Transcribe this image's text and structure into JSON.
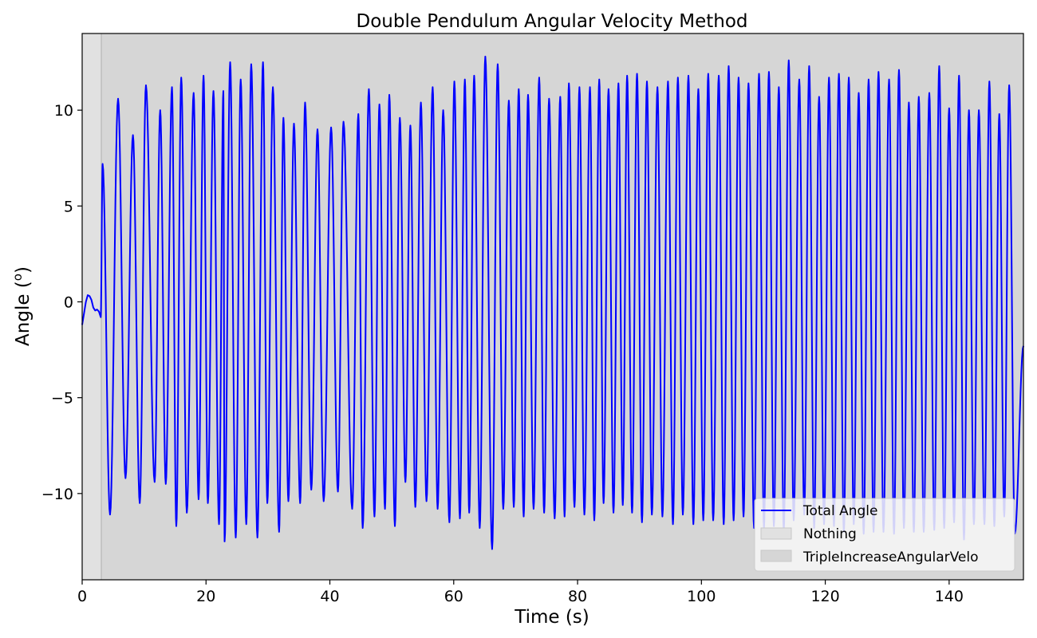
{
  "chart_data": {
    "type": "line",
    "title": "Double Pendulum Angular Velocity Method",
    "xlabel": "Time (s)",
    "ylabel_main": "Angle (",
    "ylabel_sup": "o",
    "ylabel_end": ")",
    "xlim": [
      0,
      152
    ],
    "ylim": [
      -14.5,
      14
    ],
    "xticks": [
      0,
      20,
      40,
      60,
      80,
      100,
      120,
      140
    ],
    "yticks": [
      -10,
      -5,
      0,
      5,
      10
    ],
    "ytick_labels": [
      "−10",
      "−5",
      "0",
      "5",
      "10"
    ],
    "grid": false,
    "legend_placement": "lower-right",
    "colors": {
      "line": "#0000ff",
      "span_nothing": "#e1e1e1",
      "span_triple": "#d6d6d6"
    },
    "spans": [
      {
        "name": "Nothing",
        "x0": 0,
        "x1": 3.1
      },
      {
        "name": "TripleIncreaseAngularVelo",
        "x0": 3.1,
        "x1": 152
      }
    ],
    "series": [
      {
        "name": "Total Angle",
        "initial": [
          [
            0,
            -1.2
          ],
          [
            0.3,
            -0.6
          ],
          [
            0.6,
            0.0
          ],
          [
            0.9,
            0.35
          ],
          [
            1.2,
            0.3
          ],
          [
            1.5,
            0.1
          ],
          [
            1.8,
            -0.3
          ],
          [
            2.1,
            -0.45
          ],
          [
            2.4,
            -0.4
          ],
          [
            2.7,
            -0.5
          ],
          [
            3.0,
            -0.8
          ]
        ],
        "peaks": [
          [
            3.3,
            7.2
          ],
          [
            5.8,
            10.6
          ],
          [
            8.2,
            8.7
          ],
          [
            10.3,
            11.3
          ],
          [
            12.6,
            10.0
          ],
          [
            14.5,
            11.2
          ],
          [
            16.0,
            11.7
          ],
          [
            18.0,
            10.9
          ],
          [
            19.6,
            11.8
          ],
          [
            21.2,
            11.0
          ],
          [
            22.8,
            11.0
          ],
          [
            23.9,
            12.5
          ],
          [
            25.6,
            11.6
          ],
          [
            27.3,
            12.4
          ],
          [
            29.2,
            12.5
          ],
          [
            30.8,
            11.2
          ],
          [
            32.5,
            9.6
          ],
          [
            34.2,
            9.3
          ],
          [
            36.0,
            10.4
          ],
          [
            38.0,
            9.0
          ],
          [
            40.2,
            9.1
          ],
          [
            42.2,
            9.4
          ],
          [
            44.6,
            9.8
          ],
          [
            46.3,
            11.1
          ],
          [
            48.0,
            10.3
          ],
          [
            49.6,
            10.8
          ],
          [
            51.3,
            9.6
          ],
          [
            53.0,
            9.2
          ],
          [
            54.7,
            10.4
          ],
          [
            56.6,
            11.2
          ],
          [
            58.3,
            10.0
          ],
          [
            60.1,
            11.5
          ],
          [
            61.8,
            11.6
          ],
          [
            63.3,
            11.8
          ],
          [
            65.1,
            12.8
          ],
          [
            67.1,
            12.4
          ],
          [
            68.9,
            10.5
          ],
          [
            70.5,
            11.1
          ],
          [
            72.0,
            10.8
          ],
          [
            73.8,
            11.7
          ],
          [
            75.4,
            10.6
          ],
          [
            77.2,
            10.7
          ],
          [
            78.6,
            11.4
          ],
          [
            80.3,
            11.2
          ],
          [
            82.0,
            11.2
          ],
          [
            83.5,
            11.6
          ],
          [
            85.0,
            11.1
          ],
          [
            86.6,
            11.4
          ],
          [
            88.0,
            11.8
          ],
          [
            89.6,
            11.9
          ],
          [
            91.2,
            11.5
          ],
          [
            92.9,
            11.2
          ],
          [
            94.6,
            11.5
          ],
          [
            96.2,
            11.7
          ],
          [
            97.9,
            11.8
          ],
          [
            99.5,
            11.1
          ],
          [
            101.1,
            11.9
          ],
          [
            102.8,
            11.8
          ],
          [
            104.4,
            12.3
          ],
          [
            106.0,
            11.7
          ],
          [
            107.6,
            11.4
          ],
          [
            109.3,
            11.9
          ],
          [
            110.9,
            12.0
          ],
          [
            112.5,
            11.2
          ],
          [
            114.1,
            12.6
          ],
          [
            115.8,
            11.6
          ],
          [
            117.4,
            12.3
          ],
          [
            119.0,
            10.7
          ],
          [
            120.6,
            11.7
          ],
          [
            122.2,
            11.9
          ],
          [
            123.8,
            11.7
          ],
          [
            125.4,
            10.9
          ],
          [
            127.0,
            11.6
          ],
          [
            128.6,
            12.0
          ],
          [
            130.3,
            11.6
          ],
          [
            131.9,
            12.1
          ],
          [
            133.5,
            10.4
          ],
          [
            135.1,
            10.7
          ],
          [
            136.8,
            10.9
          ],
          [
            138.4,
            12.3
          ],
          [
            140.0,
            10.1
          ],
          [
            141.6,
            11.8
          ],
          [
            143.2,
            10.0
          ],
          [
            144.8,
            10.0
          ],
          [
            146.5,
            11.5
          ],
          [
            148.1,
            9.8
          ],
          [
            149.7,
            11.3
          ]
        ],
        "troughs": [
          [
            4.5,
            -11.1
          ],
          [
            7.0,
            -9.2
          ],
          [
            9.3,
            -10.5
          ],
          [
            11.7,
            -9.4
          ],
          [
            13.5,
            -9.5
          ],
          [
            15.2,
            -11.7
          ],
          [
            16.9,
            -11.0
          ],
          [
            18.8,
            -10.3
          ],
          [
            20.3,
            -10.5
          ],
          [
            22.1,
            -11.6
          ],
          [
            23.0,
            -12.5
          ],
          [
            24.8,
            -12.3
          ],
          [
            26.5,
            -11.6
          ],
          [
            28.3,
            -12.3
          ],
          [
            29.9,
            -10.5
          ],
          [
            31.8,
            -12.0
          ],
          [
            33.3,
            -10.4
          ],
          [
            35.2,
            -10.5
          ],
          [
            37.0,
            -9.8
          ],
          [
            39.0,
            -10.4
          ],
          [
            41.3,
            -9.9
          ],
          [
            43.6,
            -10.8
          ],
          [
            45.3,
            -11.8
          ],
          [
            47.2,
            -11.2
          ],
          [
            48.9,
            -10.8
          ],
          [
            50.5,
            -11.7
          ],
          [
            52.2,
            -9.4
          ],
          [
            53.8,
            -10.7
          ],
          [
            55.6,
            -10.4
          ],
          [
            57.4,
            -10.8
          ],
          [
            59.3,
            -11.5
          ],
          [
            61.0,
            -11.3
          ],
          [
            62.5,
            -11.0
          ],
          [
            64.2,
            -11.8
          ],
          [
            66.2,
            -12.9
          ],
          [
            68.0,
            -10.8
          ],
          [
            69.7,
            -10.7
          ],
          [
            71.3,
            -11.2
          ],
          [
            72.9,
            -10.8
          ],
          [
            74.6,
            -11.0
          ],
          [
            76.3,
            -11.3
          ],
          [
            77.9,
            -11.2
          ],
          [
            79.5,
            -10.7
          ],
          [
            81.1,
            -11.1
          ],
          [
            82.7,
            -11.4
          ],
          [
            84.2,
            -10.5
          ],
          [
            85.8,
            -11.0
          ],
          [
            87.3,
            -10.6
          ],
          [
            88.8,
            -11.0
          ],
          [
            90.4,
            -11.5
          ],
          [
            92.0,
            -11.1
          ],
          [
            93.7,
            -11.2
          ],
          [
            95.4,
            -11.6
          ],
          [
            97.0,
            -11.1
          ],
          [
            98.7,
            -11.6
          ],
          [
            100.3,
            -11.4
          ],
          [
            101.9,
            -11.4
          ],
          [
            103.6,
            -11.6
          ],
          [
            105.2,
            -11.4
          ],
          [
            106.8,
            -11.2
          ],
          [
            108.5,
            -11.8
          ],
          [
            110.1,
            -11.8
          ],
          [
            111.7,
            -11.7
          ],
          [
            113.3,
            -11.9
          ],
          [
            114.9,
            -11.4
          ],
          [
            116.6,
            -11.1
          ],
          [
            118.2,
            -11.8
          ],
          [
            119.8,
            -11.6
          ],
          [
            121.4,
            -11.7
          ],
          [
            123.0,
            -12.0
          ],
          [
            124.6,
            -11.6
          ],
          [
            126.2,
            -12.1
          ],
          [
            127.8,
            -12.0
          ],
          [
            129.4,
            -12.0
          ],
          [
            131.1,
            -12.1
          ],
          [
            132.7,
            -11.8
          ],
          [
            134.3,
            -12.0
          ],
          [
            135.9,
            -12.0
          ],
          [
            137.6,
            -11.9
          ],
          [
            139.2,
            -11.8
          ],
          [
            140.8,
            -11.5
          ],
          [
            142.4,
            -12.4
          ],
          [
            144.0,
            -11.6
          ],
          [
            145.7,
            -11.6
          ],
          [
            147.3,
            -11.7
          ],
          [
            148.9,
            -11.2
          ],
          [
            150.6,
            -12.1
          ]
        ],
        "end": [
          152,
          -2.3
        ]
      }
    ],
    "legend": [
      {
        "label": "Total Angle",
        "kind": "line"
      },
      {
        "label": "Nothing",
        "kind": "patch-nothing"
      },
      {
        "label": "TripleIncreaseAngularVelo",
        "kind": "patch-triple"
      }
    ]
  }
}
